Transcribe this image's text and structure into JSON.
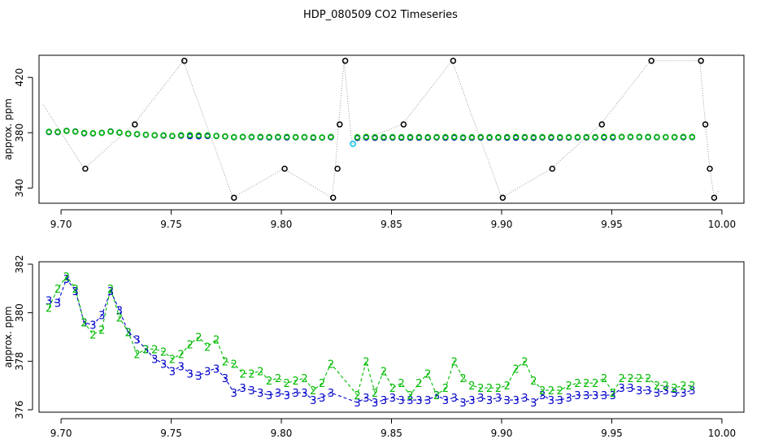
{
  "title": "HDP_080509  CO2 Timeseries",
  "colors": {
    "gray": "#999999",
    "black": "#000000",
    "blue": "#0000cc",
    "green": "#00bb00",
    "cyan": "#33ccee"
  },
  "chart_data": [
    {
      "type": "scatter",
      "title": "",
      "xlabel": "",
      "ylabel": "approx. ppm",
      "xlim": [
        9.69,
        10.01
      ],
      "ylim": [
        329,
        436
      ],
      "xticks": [
        9.7,
        9.75,
        9.8,
        9.85,
        9.9,
        9.95,
        10.0
      ],
      "xtick_labels": [
        "9.70",
        "9.75",
        "9.80",
        "9.85",
        "9.90",
        "9.95",
        "10.00"
      ],
      "yticks": [
        340,
        380,
        420
      ],
      "ytick_labels": [
        "340",
        "380",
        "420"
      ],
      "grid": false,
      "legend": "none",
      "raw_x": [
        9.692,
        9.7105,
        9.733,
        9.7555,
        9.778,
        9.801,
        9.823,
        9.8245,
        9.826,
        9.8285,
        9.832,
        9.855,
        9.8775,
        9.9,
        9.9225,
        9.945,
        9.9675,
        9.99,
        9.9925,
        9.9945,
        9.9965,
        9.9985
      ],
      "raw_y": [
        400,
        354,
        386,
        432,
        333,
        354,
        333,
        354,
        386,
        432,
        372,
        386,
        432,
        333,
        354,
        386,
        432,
        432,
        386,
        354,
        333,
        338
      ],
      "outlier_x": [
        9.711,
        9.7335,
        9.756,
        9.7785,
        9.8015,
        9.8235,
        9.8255,
        9.8265,
        9.829,
        9.8555,
        9.878,
        9.9005,
        9.923,
        9.9455,
        9.968,
        9.9905,
        9.9925,
        9.9945,
        9.9965
      ],
      "outlier_y": [
        354,
        386,
        432,
        333,
        354,
        333,
        354,
        386,
        432,
        386,
        432,
        333,
        354,
        386,
        432,
        432,
        386,
        354,
        333
      ],
      "flagged_x": [
        9.8325
      ],
      "flagged_y": [
        372
      ],
      "series": [
        {
          "marker": "circle",
          "color": "blue",
          "x": [
            9.6945,
            9.6985,
            9.7025,
            9.7065,
            9.7105,
            9.7145,
            9.7185,
            9.7225,
            9.7265,
            9.7305,
            9.7345,
            9.7385,
            9.7425,
            9.7465,
            9.7505,
            9.7545,
            9.7585,
            9.7625,
            9.7665,
            9.7705,
            9.7745,
            9.7785,
            9.7825,
            9.7865,
            9.7905,
            9.7945,
            9.7985,
            9.8025,
            9.8065,
            9.8105,
            9.8145,
            9.8185,
            9.8225,
            9.8345,
            9.8385,
            9.8425,
            9.8465,
            9.8505,
            9.8545,
            9.8585,
            9.8625,
            9.8665,
            9.8705,
            9.8745,
            9.8785,
            9.8825,
            9.8865,
            9.8905,
            9.8945,
            9.8985,
            9.9025,
            9.9065,
            9.9105,
            9.9145,
            9.9185,
            9.9225,
            9.9265,
            9.9305,
            9.9345,
            9.9385,
            9.9425,
            9.9465,
            9.9505,
            9.9545,
            9.9585,
            9.9625,
            9.9665,
            9.9705,
            9.9745,
            9.9785,
            9.9825,
            9.9865
          ],
          "y": [
            380.5,
            380.4,
            381.4,
            380.9,
            379.6,
            379.5,
            379.9,
            380.9,
            380.1,
            379.2,
            378.9,
            378.5,
            378.1,
            377.9,
            377.6,
            377.8,
            377.5,
            377.4,
            377.6,
            377.7,
            377.3,
            376.7,
            376.9,
            376.8,
            376.7,
            376.6,
            376.7,
            376.6,
            376.7,
            376.7,
            376.4,
            376.5,
            376.7,
            376.3,
            376.5,
            376.3,
            376.4,
            376.5,
            376.4,
            376.4,
            376.4,
            376.4,
            376.6,
            376.4,
            376.5,
            376.3,
            376.4,
            376.5,
            376.4,
            376.5,
            376.4,
            376.4,
            376.5,
            376.3,
            376.6,
            376.4,
            376.4,
            376.5,
            376.6,
            376.6,
            376.6,
            376.6,
            376.6,
            376.9,
            376.9,
            376.8,
            376.8,
            376.7,
            376.8,
            376.7,
            376.7,
            376.8
          ]
        },
        {
          "marker": "circle",
          "color": "green",
          "x": [
            9.6945,
            9.6985,
            9.7025,
            9.7065,
            9.7105,
            9.7145,
            9.7185,
            9.7225,
            9.7265,
            9.7305,
            9.7345,
            9.7385,
            9.7425,
            9.7465,
            9.7505,
            9.7545,
            9.7585,
            9.7625,
            9.7665,
            9.7705,
            9.7745,
            9.7785,
            9.7825,
            9.7865,
            9.7905,
            9.7945,
            9.7985,
            9.8025,
            9.8065,
            9.8105,
            9.8145,
            9.8185,
            9.8225,
            9.8345,
            9.8385,
            9.8425,
            9.8465,
            9.8505,
            9.8545,
            9.8585,
            9.8625,
            9.8665,
            9.8705,
            9.8745,
            9.8785,
            9.8825,
            9.8865,
            9.8905,
            9.8945,
            9.8985,
            9.9025,
            9.9065,
            9.9105,
            9.9145,
            9.9185,
            9.9225,
            9.9265,
            9.9305,
            9.9345,
            9.9385,
            9.9425,
            9.9465,
            9.9505,
            9.9545,
            9.9585,
            9.9625,
            9.9665,
            9.9705,
            9.9745,
            9.9785,
            9.9825,
            9.9865
          ],
          "y": [
            380.7,
            380.6,
            381.3,
            380.8,
            379.8,
            379.6,
            379.9,
            380.8,
            380.1,
            379.3,
            379.0,
            378.6,
            378.2,
            378.1,
            377.7,
            378.2,
            378.3,
            378.1,
            378.1,
            377.6,
            377.4,
            376.9,
            377.0,
            377.0,
            377.0,
            376.9,
            377.0,
            377.0,
            376.9,
            376.9,
            376.7,
            376.6,
            377.0,
            376.8,
            377.0,
            376.8,
            376.9,
            376.9,
            376.8,
            376.9,
            376.9,
            376.8,
            376.9,
            376.9,
            377.0,
            376.7,
            376.8,
            376.9,
            376.8,
            376.8,
            376.9,
            377.0,
            376.9,
            376.8,
            376.9,
            376.9,
            376.8,
            376.8,
            376.9,
            376.9,
            376.9,
            377.0,
            377.0,
            377.0,
            377.1,
            377.0,
            377.0,
            376.9,
            376.9,
            376.9,
            377.0,
            377.0
          ]
        }
      ]
    },
    {
      "type": "line",
      "title": "",
      "xlabel": "",
      "ylabel": "approx. ppm",
      "xlim": [
        9.69,
        10.01
      ],
      "ylim": [
        375.9,
        382.1
      ],
      "xticks": [
        9.7,
        9.75,
        9.8,
        9.85,
        9.9,
        9.95,
        10.0
      ],
      "xtick_labels": [
        "9.70",
        "9.75",
        "9.80",
        "9.85",
        "9.90",
        "9.95",
        "10.00"
      ],
      "yticks": [
        376,
        378,
        380,
        382
      ],
      "ytick_labels": [
        "376",
        "378",
        "380",
        "382"
      ],
      "grid": false,
      "legend": "none",
      "series": [
        {
          "marker": "3",
          "color": "blue",
          "x": [
            9.6945,
            9.6985,
            9.7025,
            9.7065,
            9.7105,
            9.7145,
            9.7185,
            9.7225,
            9.7265,
            9.7305,
            9.7345,
            9.7385,
            9.7425,
            9.7465,
            9.7505,
            9.7545,
            9.7585,
            9.7625,
            9.7665,
            9.7705,
            9.7745,
            9.7785,
            9.7825,
            9.7865,
            9.7905,
            9.7945,
            9.7985,
            9.8025,
            9.8065,
            9.8105,
            9.8145,
            9.8185,
            9.8225,
            9.8345,
            9.8385,
            9.8425,
            9.8465,
            9.8505,
            9.8545,
            9.8585,
            9.8625,
            9.8665,
            9.8705,
            9.8745,
            9.8785,
            9.8825,
            9.8865,
            9.8905,
            9.8945,
            9.8985,
            9.9025,
            9.9065,
            9.9105,
            9.9145,
            9.9185,
            9.9225,
            9.9265,
            9.9305,
            9.9345,
            9.9385,
            9.9425,
            9.9465,
            9.9505,
            9.9545,
            9.9585,
            9.9625,
            9.9665,
            9.9705,
            9.9745,
            9.9785,
            9.9825,
            9.9865
          ],
          "y": [
            380.5,
            380.4,
            381.4,
            380.9,
            379.6,
            379.5,
            379.9,
            380.9,
            380.1,
            379.2,
            378.9,
            378.5,
            378.1,
            377.9,
            377.6,
            377.8,
            377.5,
            377.4,
            377.6,
            377.7,
            377.3,
            376.7,
            376.9,
            376.8,
            376.7,
            376.6,
            376.7,
            376.6,
            376.7,
            376.7,
            376.4,
            376.5,
            376.7,
            376.3,
            376.5,
            376.3,
            376.4,
            376.5,
            376.4,
            376.4,
            376.4,
            376.4,
            376.6,
            376.4,
            376.5,
            376.3,
            376.4,
            376.5,
            376.4,
            376.5,
            376.4,
            376.4,
            376.5,
            376.3,
            376.6,
            376.4,
            376.4,
            376.5,
            376.6,
            376.6,
            376.6,
            376.6,
            376.6,
            376.9,
            376.9,
            376.8,
            376.8,
            376.7,
            376.8,
            376.7,
            376.7,
            376.8
          ]
        },
        {
          "marker": "2",
          "color": "green",
          "x": [
            9.6945,
            9.6985,
            9.7025,
            9.7065,
            9.7105,
            9.7145,
            9.7185,
            9.7225,
            9.7265,
            9.7305,
            9.7345,
            9.7385,
            9.7425,
            9.7465,
            9.7505,
            9.7545,
            9.7585,
            9.7625,
            9.7665,
            9.7705,
            9.7745,
            9.7785,
            9.7825,
            9.7865,
            9.7905,
            9.7945,
            9.7985,
            9.8025,
            9.8065,
            9.8105,
            9.8145,
            9.8185,
            9.8225,
            9.8345,
            9.8385,
            9.8425,
            9.8465,
            9.8505,
            9.8545,
            9.8585,
            9.8625,
            9.8665,
            9.8705,
            9.8745,
            9.8785,
            9.8825,
            9.8865,
            9.8905,
            9.8945,
            9.8985,
            9.9025,
            9.9065,
            9.9105,
            9.9145,
            9.9185,
            9.9225,
            9.9265,
            9.9305,
            9.9345,
            9.9385,
            9.9425,
            9.9465,
            9.9505,
            9.9545,
            9.9585,
            9.9625,
            9.9665,
            9.9705,
            9.9745,
            9.9785,
            9.9825,
            9.9865
          ],
          "y": [
            380.2,
            381.0,
            381.5,
            381.0,
            379.6,
            379.1,
            379.3,
            381.0,
            379.8,
            379.2,
            378.3,
            378.5,
            378.5,
            378.4,
            378.1,
            378.3,
            378.7,
            379.0,
            378.6,
            378.9,
            378.0,
            377.9,
            377.5,
            377.5,
            377.6,
            377.2,
            377.3,
            377.1,
            377.2,
            377.3,
            376.8,
            377.1,
            377.9,
            376.6,
            378.0,
            376.7,
            377.6,
            376.9,
            377.1,
            376.6,
            377.1,
            377.5,
            376.6,
            376.9,
            378.0,
            377.3,
            377.0,
            376.9,
            376.9,
            376.9,
            377.0,
            377.7,
            378.0,
            377.2,
            376.8,
            376.8,
            376.8,
            377.0,
            377.1,
            377.1,
            377.1,
            377.3,
            376.7,
            377.3,
            377.3,
            377.3,
            377.3,
            377.0,
            377.0,
            376.9,
            377.0,
            377.0
          ]
        }
      ]
    }
  ]
}
